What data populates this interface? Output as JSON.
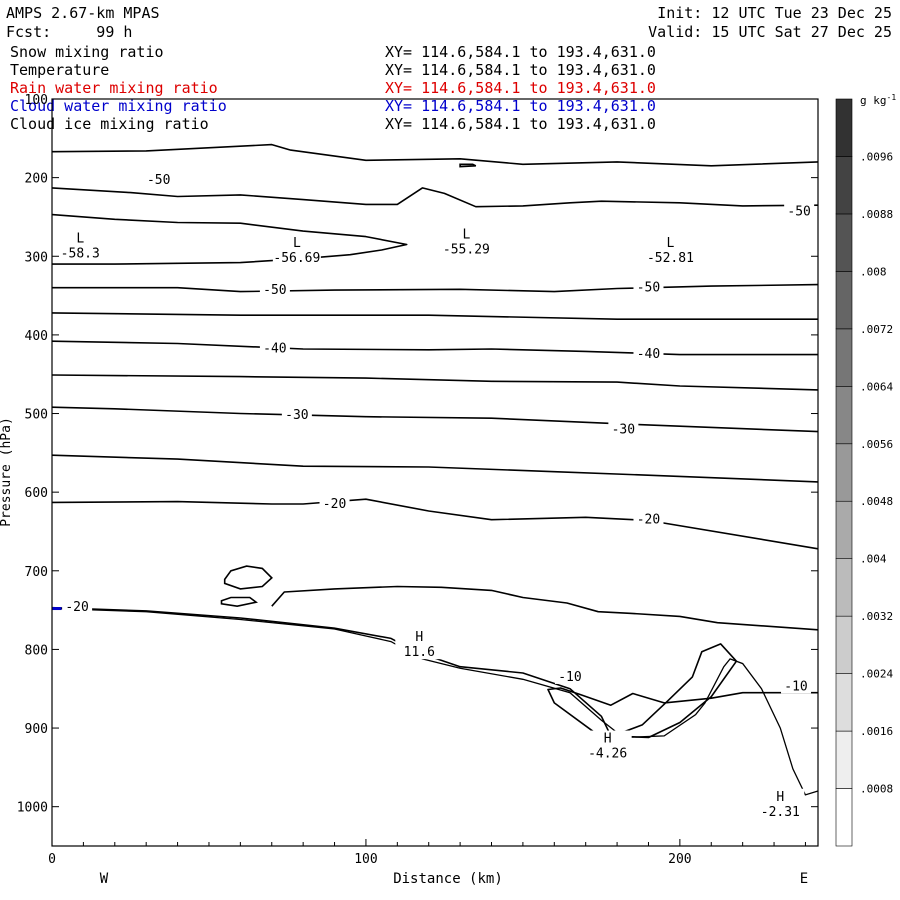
{
  "header": {
    "model": "AMPS 2.67-km MPAS",
    "forecast": "Fcst:     99 h",
    "init": "Init: 12 UTC Tue 23 Dec 25",
    "valid": "Valid: 15 UTC Sat 27 Dec 25"
  },
  "fields": [
    {
      "name": "Snow mixing ratio",
      "xy": "XY= 114.6,584.1 to 193.4,631.0",
      "color": "#000000"
    },
    {
      "name": "Temperature",
      "xy": "XY= 114.6,584.1 to 193.4,631.0",
      "color": "#000000"
    },
    {
      "name": "Rain water mixing ratio",
      "xy": "XY= 114.6,584.1 to 193.4,631.0",
      "color": "#dd0000"
    },
    {
      "name": "Cloud water mixing ratio",
      "xy": "XY= 114.6,584.1 to 193.4,631.0",
      "color": "#0000cc"
    },
    {
      "name": "Cloud ice mixing ratio",
      "xy": "XY= 114.6,584.1 to 193.4,631.0",
      "color": "#000000"
    }
  ],
  "chart_data": {
    "type": "contour-cross-section",
    "xlabel": "Distance (km)",
    "ylabel": "Pressure (hPa)",
    "xlim": [
      0,
      244
    ],
    "ylim": [
      1050,
      100
    ],
    "x_ticks": [
      0,
      100,
      200
    ],
    "y_ticks": [
      100,
      200,
      300,
      400,
      500,
      600,
      700,
      800,
      900,
      1000
    ],
    "x_end_labels": {
      "left": "W",
      "right": "E"
    },
    "colorbar": {
      "unit": "g kg",
      "unit_exp": "-1",
      "ticks": [
        ".0008",
        ".0016",
        ".0024",
        ".0032",
        ".004",
        ".0048",
        ".0056",
        ".0064",
        ".0072",
        ".008",
        ".0088",
        ".0096"
      ]
    },
    "contour_labels": [
      {
        "text": "-50",
        "x": 34,
        "p": 203
      },
      {
        "text": "-50",
        "x": 238,
        "p": 243
      },
      {
        "text": "-50",
        "x": 71,
        "p": 343
      },
      {
        "text": "-50",
        "x": 190,
        "p": 340
      },
      {
        "text": "-40",
        "x": 71,
        "p": 417
      },
      {
        "text": "-40",
        "x": 190,
        "p": 424
      },
      {
        "text": "-30",
        "x": 78,
        "p": 502
      },
      {
        "text": "-30",
        "x": 182,
        "p": 520
      },
      {
        "text": "-20",
        "x": 90,
        "p": 615
      },
      {
        "text": "-20",
        "x": 190,
        "p": 635
      },
      {
        "text": "-20",
        "x": 8,
        "p": 746
      },
      {
        "text": "-10",
        "x": 165,
        "p": 835
      },
      {
        "text": "-10",
        "x": 237,
        "p": 847
      }
    ],
    "extrema": [
      {
        "type": "L",
        "value": "-58.3",
        "x": 9,
        "p": 285
      },
      {
        "type": "L",
        "value": "-56.69",
        "x": 78,
        "p": 291
      },
      {
        "type": "L",
        "value": "-55.29",
        "x": 132,
        "p": 280
      },
      {
        "type": "L",
        "value": "-52.81",
        "x": 197,
        "p": 291
      },
      {
        "type": "H",
        "value": "11.6",
        "x": 117,
        "p": 792
      },
      {
        "type": "H",
        "value": "-4.26",
        "x": 177,
        "p": 921
      },
      {
        "type": "H",
        "value": "-2.31",
        "x": 232,
        "p": 995
      }
    ],
    "isotherms": [
      [
        [
          0,
          167
        ],
        [
          30,
          166
        ],
        [
          70,
          158
        ],
        [
          76,
          165
        ],
        [
          100,
          178
        ],
        [
          130,
          176
        ],
        [
          150,
          183
        ],
        [
          180,
          180
        ],
        [
          210,
          185
        ],
        [
          244,
          180
        ]
      ],
      [
        [
          0,
          213
        ],
        [
          25,
          219
        ],
        [
          40,
          224
        ],
        [
          60,
          222
        ],
        [
          80,
          228
        ],
        [
          100,
          234
        ],
        [
          110,
          234
        ],
        [
          118,
          213
        ],
        [
          125,
          220
        ],
        [
          135,
          237
        ],
        [
          150,
          236
        ],
        [
          165,
          232
        ],
        [
          175,
          230
        ],
        [
          200,
          232
        ],
        [
          220,
          236
        ],
        [
          244,
          235
        ]
      ],
      [
        [
          0,
          247
        ],
        [
          20,
          253
        ],
        [
          40,
          257
        ],
        [
          60,
          258
        ],
        [
          80,
          268
        ],
        [
          100,
          275
        ],
        [
          113,
          285
        ],
        [
          105,
          292
        ],
        [
          95,
          298
        ],
        [
          80,
          303
        ],
        [
          60,
          308
        ],
        [
          40,
          309
        ],
        [
          20,
          310
        ],
        [
          0,
          310
        ]
      ],
      [
        [
          0,
          340
        ],
        [
          40,
          340
        ],
        [
          60,
          345
        ],
        [
          90,
          343
        ],
        [
          130,
          342
        ],
        [
          160,
          345
        ],
        [
          180,
          341
        ],
        [
          210,
          338
        ],
        [
          244,
          336
        ]
      ],
      [
        [
          0,
          372
        ],
        [
          60,
          375
        ],
        [
          120,
          375
        ],
        [
          180,
          380
        ],
        [
          244,
          380
        ]
      ],
      [
        [
          0,
          408
        ],
        [
          40,
          411
        ],
        [
          80,
          418
        ],
        [
          120,
          419
        ],
        [
          140,
          418
        ],
        [
          170,
          421
        ],
        [
          200,
          425
        ],
        [
          244,
          425
        ]
      ],
      [
        [
          0,
          451
        ],
        [
          60,
          453
        ],
        [
          100,
          455
        ],
        [
          140,
          459
        ],
        [
          180,
          460
        ],
        [
          200,
          465
        ],
        [
          244,
          470
        ]
      ],
      [
        [
          0,
          492
        ],
        [
          20,
          494
        ],
        [
          60,
          500
        ],
        [
          100,
          504
        ],
        [
          140,
          506
        ],
        [
          180,
          513
        ],
        [
          244,
          523
        ]
      ],
      [
        [
          0,
          553
        ],
        [
          40,
          558
        ],
        [
          80,
          567
        ],
        [
          120,
          568
        ],
        [
          160,
          574
        ],
        [
          200,
          580
        ],
        [
          244,
          587
        ]
      ],
      [
        [
          0,
          613
        ],
        [
          40,
          612
        ],
        [
          70,
          615
        ],
        [
          80,
          615
        ],
        [
          100,
          609
        ],
        [
          120,
          624
        ],
        [
          140,
          635
        ],
        [
          170,
          632
        ],
        [
          190,
          636
        ],
        [
          244,
          672
        ]
      ],
      [
        [
          0,
          747
        ],
        [
          30,
          751
        ],
        [
          60,
          760
        ],
        [
          90,
          773
        ],
        [
          108,
          786
        ],
        [
          116,
          803
        ],
        [
          130,
          822
        ],
        [
          150,
          830
        ],
        [
          165,
          850
        ],
        [
          175,
          885
        ],
        [
          178,
          910
        ],
        [
          190,
          912
        ],
        [
          200,
          893
        ],
        [
          210,
          860
        ],
        [
          218,
          815
        ],
        [
          213,
          793
        ],
        [
          207,
          803
        ],
        [
          204,
          835
        ],
        [
          196,
          866
        ],
        [
          188,
          896
        ],
        [
          180,
          908
        ],
        [
          173,
          906
        ],
        [
          160,
          868
        ],
        [
          158,
          851
        ],
        [
          162,
          849
        ],
        [
          168,
          857
        ],
        [
          178,
          871
        ],
        [
          185,
          856
        ],
        [
          195,
          868
        ],
        [
          210,
          862
        ],
        [
          220,
          855
        ],
        [
          244,
          855
        ]
      ],
      [
        [
          70,
          745
        ],
        [
          74,
          727
        ],
        [
          90,
          723
        ],
        [
          110,
          720
        ],
        [
          124,
          721
        ],
        [
          140,
          725
        ],
        [
          150,
          734
        ],
        [
          164,
          741
        ],
        [
          174,
          752
        ],
        [
          184,
          754
        ],
        [
          200,
          758
        ],
        [
          212,
          766
        ],
        [
          244,
          775
        ]
      ]
    ],
    "cloud_ice_cells": [
      [
        [
          55,
          711
        ],
        [
          57,
          700
        ],
        [
          62,
          694
        ],
        [
          67,
          697
        ],
        [
          70,
          709
        ],
        [
          67,
          720
        ],
        [
          60,
          723
        ],
        [
          55,
          716
        ]
      ],
      [
        [
          54,
          738
        ],
        [
          57,
          734
        ],
        [
          63,
          734
        ],
        [
          65,
          740
        ],
        [
          59,
          745
        ],
        [
          54,
          742
        ]
      ],
      [
        [
          130,
          183
        ],
        [
          134,
          183
        ],
        [
          135,
          185
        ],
        [
          130,
          186
        ]
      ]
    ],
    "terrain": [
      [
        0,
        748
      ],
      [
        30,
        752
      ],
      [
        60,
        762
      ],
      [
        90,
        774
      ],
      [
        108,
        790
      ],
      [
        118,
        812
      ],
      [
        130,
        824
      ],
      [
        150,
        838
      ],
      [
        165,
        855
      ],
      [
        175,
        890
      ],
      [
        182,
        912
      ],
      [
        195,
        910
      ],
      [
        205,
        883
      ],
      [
        208,
        868
      ],
      [
        214,
        822
      ],
      [
        216,
        812
      ],
      [
        220,
        818
      ],
      [
        226,
        850
      ],
      [
        232,
        900
      ],
      [
        236,
        952
      ],
      [
        240,
        985
      ],
      [
        244,
        980
      ]
    ]
  }
}
